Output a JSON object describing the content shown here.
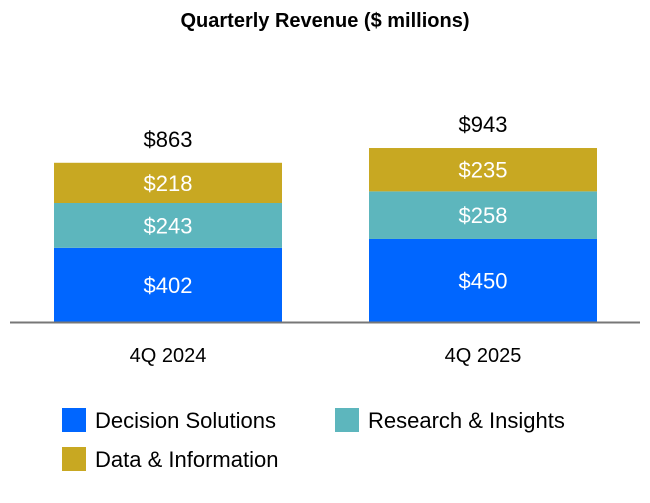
{
  "chart_data": {
    "type": "stacked-bar",
    "title": "Quarterly Revenue ($ millions)",
    "xlabel": "",
    "ylabel": "",
    "categories": [
      "4Q 2024",
      "4Q 2025"
    ],
    "series": [
      {
        "name": "Decision Solutions",
        "values": [
          402,
          450
        ],
        "labels": [
          "$402",
          "$450"
        ],
        "color": "#0066FF"
      },
      {
        "name": "Research & Insights",
        "values": [
          243,
          258
        ],
        "labels": [
          "$243",
          "$258"
        ],
        "color": "#5DB6BD"
      },
      {
        "name": "Data & Information",
        "values": [
          218,
          235
        ],
        "labels": [
          "$218",
          "$235"
        ],
        "color": "#C8A822"
      }
    ],
    "totals": [
      863,
      943
    ],
    "total_labels": [
      "$863",
      "$943"
    ],
    "ylim": [
      0,
      1000
    ],
    "grid": false,
    "legend_position": "bottom",
    "legend_order": [
      0,
      1,
      2
    ]
  }
}
